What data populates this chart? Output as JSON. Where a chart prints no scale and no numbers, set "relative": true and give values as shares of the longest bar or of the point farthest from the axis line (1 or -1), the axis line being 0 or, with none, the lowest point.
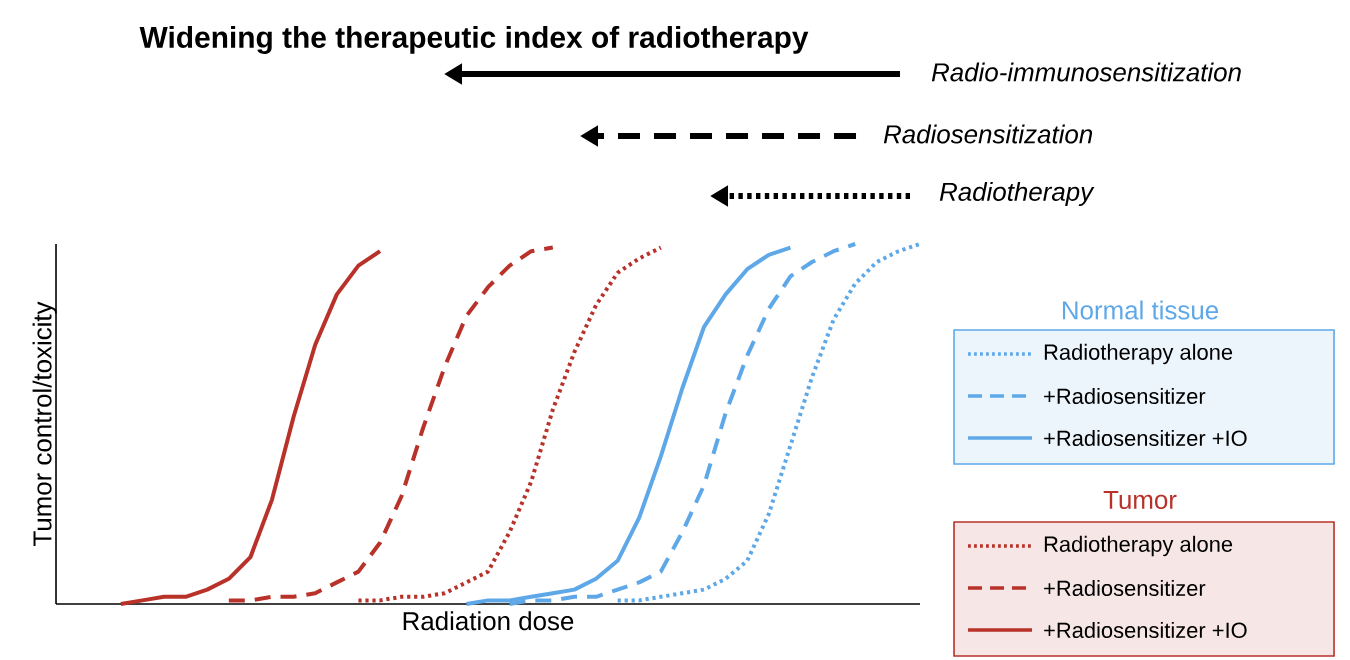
{
  "chart_data": {
    "type": "line",
    "title": "Widening the therapeutic index of radiotherapy",
    "xlabel": "Radiation dose",
    "ylabel": "Tumor control/toxicity",
    "relative": true,
    "tick_labels": false,
    "legend": "right",
    "categories": [
      null,
      null,
      null,
      null,
      null,
      null,
      null,
      null,
      null,
      null,
      null,
      null,
      null,
      null,
      null,
      null,
      null,
      null,
      null,
      null,
      null,
      null,
      null,
      null,
      null,
      null,
      null,
      null,
      null,
      null,
      null,
      null,
      null,
      null,
      null,
      null,
      null,
      null,
      null,
      null,
      null
    ],
    "annotations": [
      "Radio-immunosensitization",
      "Radiosensitization",
      "Radiotherapy",
      "Normal tissue",
      "Tumor"
    ],
    "series": [
      {
        "name": "Radiotherapy alone",
        "color": "#5fa8e8",
        "line_style": "dotted",
        "values": [
          null,
          null,
          null,
          null,
          null,
          null,
          null,
          null,
          null,
          null,
          null,
          null,
          null,
          null,
          null,
          null,
          null,
          null,
          null,
          null,
          null,
          null,
          null,
          null,
          null,
          null,
          0.01,
          0.01,
          0.02,
          0.03,
          0.04,
          0.07,
          0.12,
          0.25,
          0.44,
          0.63,
          0.79,
          0.89,
          0.95,
          0.98,
          1.0
        ]
      },
      {
        "name": "+Radiosensitizer",
        "color": "#5fa8e8",
        "line_style": "dashed",
        "values": [
          null,
          null,
          null,
          null,
          null,
          null,
          null,
          null,
          null,
          null,
          null,
          null,
          null,
          null,
          null,
          null,
          null,
          null,
          null,
          null,
          null,
          0,
          0.01,
          0.01,
          0.02,
          0.02,
          0.04,
          0.06,
          0.09,
          0.2,
          0.33,
          0.53,
          0.69,
          0.82,
          0.91,
          0.95,
          0.98,
          1.0,
          null,
          null,
          null
        ]
      },
      {
        "name": "+Radiosensitizer +IO",
        "color": "#5fa8e8",
        "line_style": "solid",
        "values": [
          null,
          null,
          null,
          null,
          null,
          null,
          null,
          null,
          null,
          null,
          null,
          null,
          null,
          null,
          null,
          null,
          null,
          null,
          null,
          0,
          0.01,
          0.01,
          0.02,
          0.03,
          0.04,
          0.07,
          0.12,
          0.24,
          0.41,
          0.6,
          0.77,
          0.86,
          0.93,
          0.97,
          0.99,
          null,
          null,
          null,
          null,
          null,
          null
        ]
      },
      {
        "name": "Radiotherapy alone",
        "color": "#b8322a",
        "line_style": "dotted",
        "values": [
          null,
          null,
          null,
          null,
          null,
          null,
          null,
          null,
          null,
          null,
          null,
          null,
          null,
          null,
          0.01,
          0.01,
          0.02,
          0.02,
          0.03,
          0.06,
          0.09,
          0.2,
          0.34,
          0.54,
          0.7,
          0.83,
          0.92,
          0.96,
          0.99,
          null,
          null,
          null,
          null,
          null,
          null,
          null,
          null,
          null,
          null,
          null,
          null
        ]
      },
      {
        "name": "+Radiosensitizer",
        "color": "#b8322a",
        "line_style": "dashed",
        "values": [
          null,
          null,
          null,
          null,
          null,
          null,
          null,
          null,
          0.01,
          0.01,
          0.02,
          0.02,
          0.03,
          0.06,
          0.09,
          0.17,
          0.3,
          0.49,
          0.66,
          0.8,
          0.88,
          0.94,
          0.98,
          0.99,
          null,
          null,
          null,
          null,
          null,
          null,
          null,
          null,
          null,
          null,
          null,
          null,
          null,
          null,
          null,
          null,
          null
        ]
      },
      {
        "name": "+Radiosensitizer +IO",
        "color": "#b8322a",
        "line_style": "solid",
        "values": [
          null,
          null,
          null,
          0,
          0.01,
          0.02,
          0.02,
          0.04,
          0.07,
          0.13,
          0.29,
          0.52,
          0.72,
          0.86,
          0.94,
          0.98,
          null,
          null,
          null,
          null,
          null,
          null,
          null,
          null,
          null,
          null,
          null,
          null,
          null,
          null,
          null,
          null,
          null,
          null,
          null,
          null,
          null,
          null,
          null,
          null,
          null
        ]
      }
    ]
  }
}
